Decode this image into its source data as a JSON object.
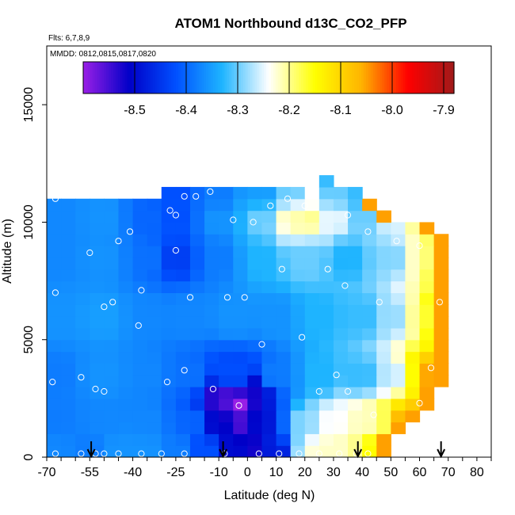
{
  "chart_data": {
    "type": "heatmap",
    "title": "ATOM1 Northbound d13C_CO2_PFP",
    "notes": [
      "Flts: 6,7,8,9",
      "MMDD: 0812,0815,0817,0820"
    ],
    "xlabel": "Latitude (deg N)",
    "ylabel": "Altitude (m)",
    "xlim": [
      -70,
      85
    ],
    "ylim": [
      0,
      17500
    ],
    "x_ticks": [
      -70,
      -55,
      -40,
      -25,
      -10,
      0,
      10,
      20,
      30,
      40,
      50,
      60,
      70,
      80
    ],
    "y_ticks": [
      0,
      5000,
      10000,
      15000
    ],
    "colorbar": {
      "vmin": -8.6,
      "vmax": -7.88,
      "tick_values": [
        -8.5,
        -8.4,
        -8.3,
        -8.2,
        -8.1,
        -8.0,
        -7.9
      ],
      "tick_labels": [
        "-8.5",
        "-8.4",
        "-8.3",
        "-8.2",
        "-8.1",
        "-8.0",
        "-7.9"
      ],
      "colors": [
        "#9a1fe6",
        "#0000c8",
        "#0050ff",
        "#1eb4ff",
        "#ffffff",
        "#ffff00",
        "#ffb400",
        "#ff0000",
        "#a01a1a"
      ]
    },
    "field": {
      "lat_grid": [
        -67.5,
        -62.5,
        -57.5,
        -52.5,
        -47.5,
        -42.5,
        -37.5,
        -32.5,
        -27.5,
        -22.5,
        -17.5,
        -12.5,
        -7.5,
        -2.5,
        2.5,
        7.5,
        12.5,
        17.5,
        22.5,
        27.5,
        32.5,
        37.5,
        42.5,
        47.5,
        52.5,
        57.5,
        62.5,
        67.5
      ],
      "alt_grid": [
        250,
        750,
        1250,
        1750,
        2250,
        2750,
        3250,
        3750,
        4250,
        4750,
        5250,
        5750,
        6250,
        6750,
        7250,
        7750,
        8250,
        8750,
        9250,
        9750,
        10250,
        10750,
        11250,
        11750
      ],
      "lat_range_by_alt": [
        [
          -67.5,
          47.5
        ],
        [
          -67.5,
          47.5
        ],
        [
          -67.5,
          52.5
        ],
        [
          -67.5,
          57.5
        ],
        [
          -67.5,
          62.5
        ],
        [
          -67.5,
          62.5
        ],
        [
          -67.5,
          67.5
        ],
        [
          -67.5,
          67.5
        ],
        [
          -67.5,
          67.5
        ],
        [
          -67.5,
          67.5
        ],
        [
          -67.5,
          67.5
        ],
        [
          -67.5,
          67.5
        ],
        [
          -67.5,
          67.5
        ],
        [
          -67.5,
          67.5
        ],
        [
          -67.5,
          67.5
        ],
        [
          -67.5,
          67.5
        ],
        [
          -67.5,
          67.5
        ],
        [
          -67.5,
          67.5
        ],
        [
          -67.5,
          67.5
        ],
        [
          -67.5,
          62.5
        ],
        [
          -67.5,
          47.5
        ],
        [
          -67.5,
          42.5
        ],
        [
          -27.5,
          37.5
        ],
        [
          27.5,
          27.5
        ]
      ],
      "anchors": [
        [
          -67,
          300,
          -8.37
        ],
        [
          -55,
          300,
          -8.38
        ],
        [
          -45,
          300,
          -8.36
        ],
        [
          -35,
          300,
          -8.36
        ],
        [
          -25,
          300,
          -8.38
        ],
        [
          -15,
          300,
          -8.42
        ],
        [
          -5,
          300,
          -8.5
        ],
        [
          2,
          300,
          -8.52
        ],
        [
          10,
          300,
          -8.48
        ],
        [
          18,
          300,
          -8.28
        ],
        [
          25,
          300,
          -8.22
        ],
        [
          32,
          300,
          -8.22
        ],
        [
          38,
          300,
          -8.2
        ],
        [
          44,
          300,
          -8.15
        ],
        [
          48,
          300,
          -8.05
        ],
        [
          -67,
          1500,
          -8.38
        ],
        [
          -50,
          1500,
          -8.37
        ],
        [
          -35,
          1500,
          -8.37
        ],
        [
          -20,
          1500,
          -8.4
        ],
        [
          -10,
          1500,
          -8.5
        ],
        [
          -3,
          1500,
          -8.55
        ],
        [
          5,
          1500,
          -8.5
        ],
        [
          12,
          1500,
          -8.4
        ],
        [
          20,
          1500,
          -8.28
        ],
        [
          30,
          1500,
          -8.24
        ],
        [
          40,
          1500,
          -8.22
        ],
        [
          48,
          1500,
          -8.18
        ],
        [
          55,
          1500,
          -8.05
        ],
        [
          -4,
          2200,
          -8.6
        ],
        [
          -8,
          2500,
          -8.55
        ],
        [
          2,
          2700,
          -8.52
        ],
        [
          -67,
          3500,
          -8.38
        ],
        [
          -50,
          3500,
          -8.36
        ],
        [
          -35,
          3500,
          -8.37
        ],
        [
          -20,
          3500,
          -8.39
        ],
        [
          -5,
          3500,
          -8.42
        ],
        [
          10,
          3500,
          -8.38
        ],
        [
          25,
          3500,
          -8.33
        ],
        [
          40,
          3500,
          -8.32
        ],
        [
          50,
          3500,
          -8.27
        ],
        [
          58,
          3500,
          -8.15
        ],
        [
          62,
          3500,
          -8.05
        ],
        [
          -67,
          6000,
          -8.36
        ],
        [
          -50,
          6000,
          -8.35
        ],
        [
          -35,
          6000,
          -8.37
        ],
        [
          -20,
          6000,
          -8.37
        ],
        [
          -5,
          6000,
          -8.36
        ],
        [
          10,
          6000,
          -8.36
        ],
        [
          25,
          6000,
          -8.33
        ],
        [
          40,
          6000,
          -8.32
        ],
        [
          52,
          6000,
          -8.28
        ],
        [
          60,
          6000,
          -8.2
        ],
        [
          66,
          6000,
          -8.08
        ],
        [
          -67,
          8500,
          -8.37
        ],
        [
          -50,
          8500,
          -8.36
        ],
        [
          -35,
          8500,
          -8.39
        ],
        [
          -25,
          8500,
          -8.44
        ],
        [
          -10,
          8500,
          -8.38
        ],
        [
          5,
          8500,
          -8.33
        ],
        [
          20,
          8500,
          -8.3
        ],
        [
          35,
          8500,
          -8.33
        ],
        [
          50,
          8500,
          -8.29
        ],
        [
          60,
          8500,
          -8.22
        ],
        [
          66,
          8500,
          -8.12
        ],
        [
          -67,
          10200,
          -8.37
        ],
        [
          -50,
          10200,
          -8.36
        ],
        [
          -35,
          10200,
          -8.4
        ],
        [
          -25,
          10200,
          -8.42
        ],
        [
          -10,
          10200,
          -8.36
        ],
        [
          5,
          10200,
          -8.3
        ],
        [
          15,
          10200,
          -8.22
        ],
        [
          20,
          10200,
          -8.2
        ],
        [
          30,
          10200,
          -8.25
        ],
        [
          40,
          10200,
          -8.3
        ],
        [
          50,
          10200,
          -8.26
        ],
        [
          60,
          10200,
          -8.2
        ],
        [
          -25,
          11200,
          -8.42
        ],
        [
          -10,
          11200,
          -8.38
        ],
        [
          5,
          11200,
          -8.35
        ],
        [
          15,
          11200,
          -8.3
        ],
        [
          22,
          11200,
          -8.24
        ],
        [
          30,
          11200,
          -8.3
        ],
        [
          38,
          11200,
          -8.32
        ],
        [
          28,
          11700,
          -8.32
        ]
      ]
    },
    "samples": [
      [
        -67,
        11000
      ],
      [
        -22,
        11100
      ],
      [
        -18,
        11100
      ],
      [
        -13,
        11300
      ],
      [
        -27,
        10500
      ],
      [
        -25,
        10300
      ],
      [
        -5,
        10100
      ],
      [
        2,
        10000
      ],
      [
        8,
        10700
      ],
      [
        14,
        11000
      ],
      [
        20,
        10700
      ],
      [
        35,
        10300
      ],
      [
        42,
        9600
      ],
      [
        52,
        9200
      ],
      [
        60,
        9000
      ],
      [
        -41,
        9600
      ],
      [
        -45,
        9200
      ],
      [
        -25,
        8800
      ],
      [
        -55,
        8700
      ],
      [
        -67,
        7000
      ],
      [
        -37,
        7100
      ],
      [
        -20,
        6800
      ],
      [
        -7,
        6800
      ],
      [
        -1,
        6800
      ],
      [
        12,
        8000
      ],
      [
        28,
        8000
      ],
      [
        34,
        7300
      ],
      [
        46,
        6600
      ],
      [
        67,
        6600
      ],
      [
        -50,
        6400
      ],
      [
        -47,
        6600
      ],
      [
        -38,
        5600
      ],
      [
        5,
        4800
      ],
      [
        19,
        5100
      ],
      [
        -22,
        3700
      ],
      [
        -58,
        3400
      ],
      [
        -68,
        3200
      ],
      [
        -53,
        2900
      ],
      [
        -50,
        2800
      ],
      [
        -28,
        3200
      ],
      [
        -12,
        2900
      ],
      [
        25,
        2800
      ],
      [
        31,
        3500
      ],
      [
        35,
        2800
      ],
      [
        44,
        1800
      ],
      [
        60,
        2300
      ],
      [
        64,
        3800
      ],
      [
        -3,
        2200
      ],
      [
        -67,
        150
      ],
      [
        -58,
        150
      ],
      [
        -53,
        150
      ],
      [
        -50,
        150
      ],
      [
        -45,
        150
      ],
      [
        -37,
        150
      ],
      [
        -30,
        150
      ],
      [
        -22,
        150
      ],
      [
        -8,
        150
      ],
      [
        4,
        150
      ],
      [
        11,
        150
      ],
      [
        18,
        150
      ],
      [
        25,
        150
      ],
      [
        32,
        150
      ],
      [
        38,
        150
      ],
      [
        42,
        150
      ]
    ],
    "flight_markers_lat": [
      -54.5,
      -8.5,
      38.5,
      67.5
    ]
  }
}
